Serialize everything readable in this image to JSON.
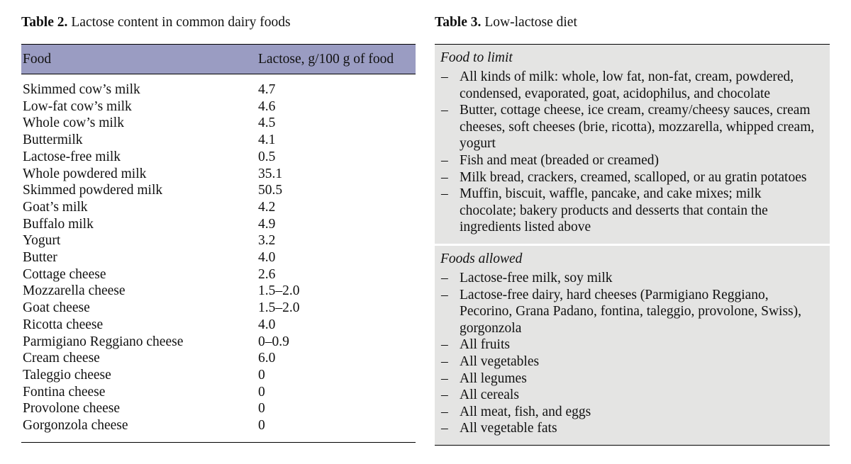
{
  "colors": {
    "header_bg": "#9a9cc2",
    "section_bg": "#e4e4e3"
  },
  "table2": {
    "caption_label": "Table 2.",
    "caption_text": "Lactose content in common dairy foods",
    "columns": [
      "Food",
      "Lactose, g/100 g of food"
    ],
    "rows": [
      [
        "Skimmed cow’s milk",
        "4.7"
      ],
      [
        "Low-fat cow’s milk",
        "4.6"
      ],
      [
        "Whole cow’s milk",
        "4.5"
      ],
      [
        "Buttermilk",
        "4.1"
      ],
      [
        "Lactose-free milk",
        "0.5"
      ],
      [
        "Whole powdered milk",
        "35.1"
      ],
      [
        "Skimmed powdered milk",
        "50.5"
      ],
      [
        "Goat’s milk",
        "4.2"
      ],
      [
        "Buffalo milk",
        "4.9"
      ],
      [
        "Yogurt",
        "3.2"
      ],
      [
        "Butter",
        "4.0"
      ],
      [
        "Cottage cheese",
        "2.6"
      ],
      [
        "Mozzarella cheese",
        "1.5–2.0"
      ],
      [
        "Goat cheese",
        "1.5–2.0"
      ],
      [
        "Ricotta cheese",
        "4.0"
      ],
      [
        "Parmigiano Reggiano cheese",
        "0–0.9"
      ],
      [
        "Cream cheese",
        "6.0"
      ],
      [
        "Taleggio cheese",
        "0"
      ],
      [
        "Fontina cheese",
        "0"
      ],
      [
        "Provolone cheese",
        "0"
      ],
      [
        "Gorgonzola cheese",
        "0"
      ]
    ]
  },
  "table3": {
    "caption_label": "Table 3.",
    "caption_text": "Low-lactose diet",
    "sections": [
      {
        "heading": "Food to limit",
        "items": [
          "All kinds of milk: whole, low fat, non-fat, cream, powdered, condensed, evaporated, goat, acidophilus, and chocolate",
          "Butter, cottage cheese, ice cream, creamy/cheesy sauces, cream cheeses, soft cheeses (brie, ricotta), mozzarella, whipped cream, yogurt",
          "Fish and meat (breaded or creamed)",
          "Milk bread, crackers, creamed, scalloped, or au gratin potatoes",
          "Muffin, biscuit, waffle, pancake, and cake mixes; milk chocolate; bakery products and desserts that contain the ingredients listed above"
        ]
      },
      {
        "heading": "Foods allowed",
        "items": [
          "Lactose-free milk, soy milk",
          "Lactose-free dairy, hard cheeses (Parmigiano Reggiano, Pecorino, Grana Padano, fontina, taleggio, provolone, Swiss), gorgonzola",
          "All fruits",
          "All vegetables",
          "All legumes",
          "All cereals",
          "All meat, fish, and eggs",
          "All vegetable fats"
        ]
      }
    ]
  }
}
